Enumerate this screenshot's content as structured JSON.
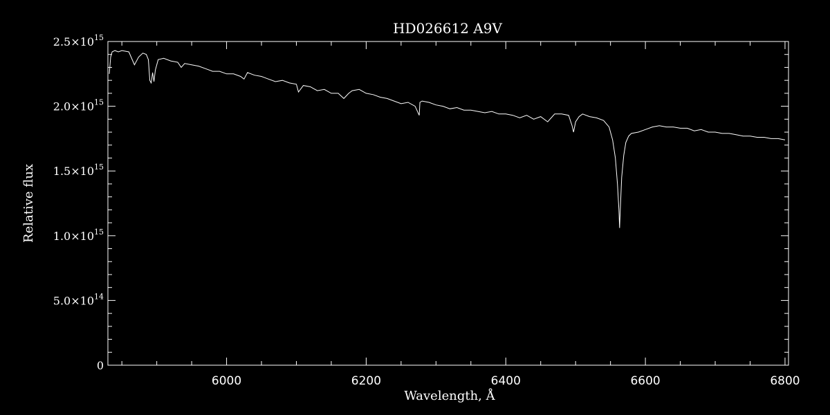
{
  "chart_data": {
    "type": "line",
    "title": "HD026612   A9V",
    "xlabel": "Wavelength, Å",
    "ylabel": "Relative flux",
    "xlim": [
      5830,
      6805
    ],
    "ylim": [
      0,
      2500000000000000.0
    ],
    "grid": false,
    "background": "#000000",
    "line_color": "#ffffff",
    "x_ticks": [
      {
        "value": 6000,
        "label": "6000"
      },
      {
        "value": 6200,
        "label": "6200"
      },
      {
        "value": 6400,
        "label": "6400"
      },
      {
        "value": 6600,
        "label": "6600"
      },
      {
        "value": 6800,
        "label": "6800"
      }
    ],
    "y_ticks": [
      {
        "value": 0,
        "mantissa": "0",
        "exponent": ""
      },
      {
        "value": 500000000000000.0,
        "mantissa": "5.0×10",
        "exponent": "14"
      },
      {
        "value": 1000000000000000.0,
        "mantissa": "1.0×10",
        "exponent": "15"
      },
      {
        "value": 1500000000000000.0,
        "mantissa": "1.5×10",
        "exponent": "15"
      },
      {
        "value": 2000000000000000.0,
        "mantissa": "2.0×10",
        "exponent": "15"
      },
      {
        "value": 2500000000000000.0,
        "mantissa": "2.5×10",
        "exponent": "15"
      }
    ],
    "series": [
      {
        "x": [
          5832,
          5834,
          5836,
          5840,
          5845,
          5850,
          5860,
          5868,
          5874,
          5880,
          5885,
          5888,
          5890,
          5892,
          5894,
          5896,
          5898,
          5902,
          5910,
          5920,
          5930,
          5935,
          5940,
          5950,
          5960,
          5970,
          5980,
          5990,
          6000,
          6010,
          6020,
          6025,
          6030,
          6040,
          6050,
          6060,
          6070,
          6080,
          6090,
          6100,
          6103,
          6110,
          6120,
          6130,
          6140,
          6150,
          6160,
          6168,
          6175,
          6180,
          6190,
          6200,
          6210,
          6220,
          6230,
          6240,
          6250,
          6260,
          6270,
          6276,
          6277,
          6280,
          6290,
          6300,
          6310,
          6320,
          6330,
          6340,
          6350,
          6360,
          6370,
          6380,
          6390,
          6400,
          6410,
          6420,
          6430,
          6440,
          6450,
          6460,
          6470,
          6480,
          6490,
          6495,
          6497,
          6500,
          6505,
          6510,
          6520,
          6530,
          6540,
          6548,
          6553,
          6557,
          6560,
          6562,
          6563,
          6564,
          6566,
          6569,
          6572,
          6576,
          6580,
          6590,
          6600,
          6610,
          6620,
          6630,
          6640,
          6650,
          6660,
          6670,
          6680,
          6690,
          6700,
          6710,
          6720,
          6730,
          6740,
          6750,
          6760,
          6770,
          6780,
          6790,
          6800
        ],
        "values": [
          2250000000000000.0,
          2380000000000000.0,
          2420000000000000.0,
          2430000000000000.0,
          2420000000000000.0,
          2430000000000000.0,
          2420000000000000.0,
          2320000000000000.0,
          2380000000000000.0,
          2410000000000000.0,
          2400000000000000.0,
          2360000000000000.0,
          2200000000000000.0,
          2180000000000000.0,
          2260000000000000.0,
          2190000000000000.0,
          2280000000000000.0,
          2360000000000000.0,
          2370000000000000.0,
          2350000000000000.0,
          2340000000000000.0,
          2300000000000000.0,
          2330000000000000.0,
          2320000000000000.0,
          2310000000000000.0,
          2290000000000000.0,
          2270000000000000.0,
          2270000000000000.0,
          2250000000000000.0,
          2250000000000000.0,
          2230000000000000.0,
          2210000000000000.0,
          2260000000000000.0,
          2240000000000000.0,
          2230000000000000.0,
          2210000000000000.0,
          2190000000000000.0,
          2200000000000000.0,
          2180000000000000.0,
          2170000000000000.0,
          2110000000000000.0,
          2160000000000000.0,
          2150000000000000.0,
          2120000000000000.0,
          2130000000000000.0,
          2100000000000000.0,
          2100000000000000.0,
          2060000000000000.0,
          2100000000000000.0,
          2120000000000000.0,
          2130000000000000.0,
          2100000000000000.0,
          2090000000000000.0,
          2070000000000000.0,
          2060000000000000.0,
          2040000000000000.0,
          2020000000000000.0,
          2030000000000000.0,
          2000000000000000.0,
          1930000000000000.0,
          2030000000000000.0,
          2040000000000000.0,
          2030000000000000.0,
          2010000000000000.0,
          2000000000000000.0,
          1980000000000000.0,
          1990000000000000.0,
          1970000000000000.0,
          1970000000000000.0,
          1960000000000000.0,
          1950000000000000.0,
          1960000000000000.0,
          1940000000000000.0,
          1940000000000000.0,
          1930000000000000.0,
          1910000000000000.0,
          1930000000000000.0,
          1900000000000000.0,
          1920000000000000.0,
          1880000000000000.0,
          1940000000000000.0,
          1940000000000000.0,
          1930000000000000.0,
          1850000000000000.0,
          1800000000000000.0,
          1880000000000000.0,
          1920000000000000.0,
          1940000000000000.0,
          1920000000000000.0,
          1910000000000000.0,
          1890000000000000.0,
          1840000000000000.0,
          1740000000000000.0,
          1600000000000000.0,
          1400000000000000.0,
          1200000000000000.0,
          1060000000000000.0,
          1200000000000000.0,
          1450000000000000.0,
          1620000000000000.0,
          1720000000000000.0,
          1770000000000000.0,
          1790000000000000.0,
          1800000000000000.0,
          1820000000000000.0,
          1840000000000000.0,
          1850000000000000.0,
          1840000000000000.0,
          1840000000000000.0,
          1830000000000000.0,
          1830000000000000.0,
          1810000000000000.0,
          1820000000000000.0,
          1800000000000000.0,
          1800000000000000.0,
          1790000000000000.0,
          1790000000000000.0,
          1780000000000000.0,
          1770000000000000.0,
          1770000000000000.0,
          1760000000000000.0,
          1760000000000000.0,
          1750000000000000.0,
          1750000000000000.0,
          1740000000000000.0
        ]
      }
    ]
  }
}
